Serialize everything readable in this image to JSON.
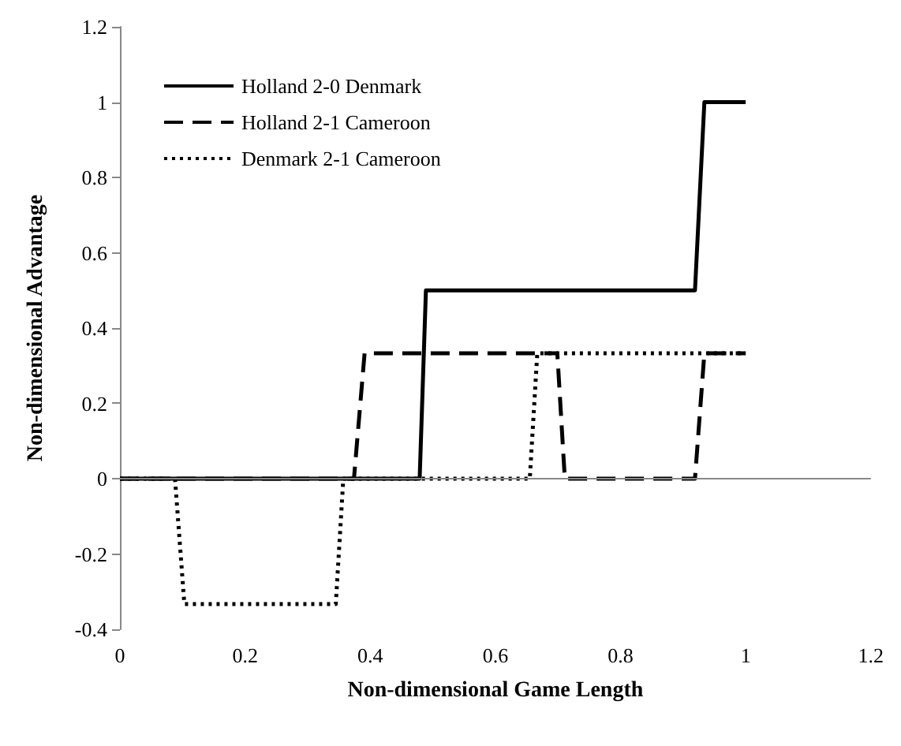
{
  "chart_data": {
    "type": "line",
    "xlabel": "Non-dimensional Game Length",
    "ylabel": "Non-dimensional Advantage",
    "xlim": [
      0,
      1.2
    ],
    "xticks": [
      0,
      0.2,
      0.4,
      0.6,
      0.8,
      1,
      1.2
    ],
    "ylim": [
      -0.4,
      1.2
    ],
    "yticks": [
      -0.4,
      -0.2,
      0,
      0.2,
      0.4,
      0.6,
      0.8,
      1,
      1.2
    ],
    "grid": false,
    "ref_lines": [
      {
        "axis": "y",
        "value": 0,
        "color": "#888888"
      }
    ],
    "legend": "top left",
    "marker": "none",
    "series": [
      {
        "name": "Holland 2-0 Denmark",
        "color": "#000000",
        "line_style": "solid",
        "x": [
          0,
          0.479,
          0.489,
          0.919,
          0.934,
          1
        ],
        "values": [
          0,
          0,
          0.5,
          0.5,
          1,
          1
        ]
      },
      {
        "name": "Holland 2-1 Cameroon",
        "color": "#000000",
        "line_style": "dashed",
        "x": [
          0,
          0.374,
          0.391,
          0.699,
          0.711,
          0.919,
          0.934,
          1
        ],
        "values": [
          0,
          0,
          0.333,
          0.333,
          0,
          0,
          0.333,
          0.333
        ]
      },
      {
        "name": "Denmark 2-1 Cameroon",
        "color": "#000000",
        "line_style": "dotted",
        "x": [
          0,
          0.088,
          0.103,
          0.345,
          0.357,
          0.655,
          0.667,
          1
        ],
        "values": [
          0,
          0,
          -0.333,
          -0.333,
          0,
          0,
          0.333,
          0.333
        ]
      }
    ]
  }
}
